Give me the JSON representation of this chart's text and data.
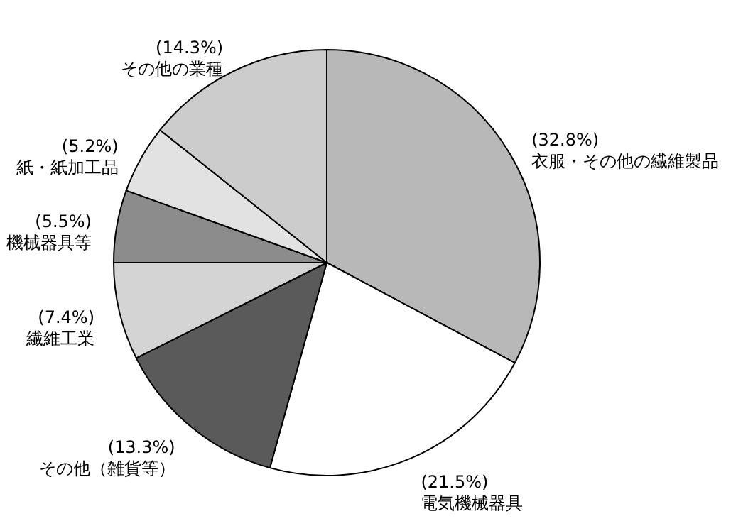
{
  "chart_data": {
    "type": "pie",
    "categories": [
      "衣服・その他の繊維製品",
      "電気機械器具",
      "その他（雑貨等）",
      "繊維工業",
      "機械器具等",
      "紙・紙加工品",
      "その他の業種"
    ],
    "values": [
      32.8,
      21.5,
      13.3,
      7.4,
      5.5,
      5.2,
      14.3
    ],
    "value_labels": [
      "(32.8%)",
      "(21.5%)",
      "(13.3%)",
      "(7.4%)",
      "(5.5%)",
      "(5.2%)",
      "(14.3%)"
    ],
    "colors": [
      "#b8b8b8",
      "#ffffff",
      "#5a5a5a",
      "#d4d4d4",
      "#8c8c8c",
      "#e2e2e2",
      "#cccccc"
    ]
  }
}
